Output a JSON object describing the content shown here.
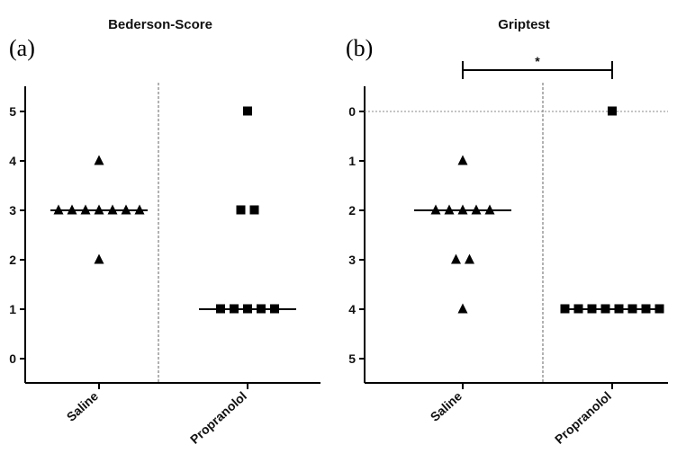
{
  "chart_data": [
    {
      "type": "scatter",
      "panel_label": "(a)",
      "title": "Bederson-Score",
      "categories": [
        "Saline",
        "Propranolol"
      ],
      "y_ticks": [
        "0",
        "1",
        "2",
        "3",
        "4",
        "5"
      ],
      "ylim": [
        0,
        5
      ],
      "y_axis_inverted": false,
      "series": [
        {
          "category": "Saline",
          "marker": "triangle",
          "values": [
            4,
            3,
            3,
            3,
            3,
            3,
            3,
            3,
            2
          ],
          "median": 3
        },
        {
          "category": "Propranolol",
          "marker": "square",
          "values": [
            5,
            3,
            3,
            1,
            1,
            1,
            1,
            1
          ],
          "median": 1
        }
      ],
      "reference_lines": [],
      "significance": null
    },
    {
      "type": "scatter",
      "panel_label": "(b)",
      "title": "Griptest",
      "categories": [
        "Saline",
        "Propranolol"
      ],
      "y_ticks": [
        "0",
        "1",
        "2",
        "3",
        "4",
        "5"
      ],
      "ylim": [
        0,
        5
      ],
      "y_axis_inverted": true,
      "series": [
        {
          "category": "Saline",
          "marker": "triangle",
          "values": [
            1,
            2,
            2,
            2,
            2,
            2,
            3,
            3,
            4
          ],
          "median": 2
        },
        {
          "category": "Propranolol",
          "marker": "square",
          "values": [
            0,
            4,
            4,
            4,
            4,
            4,
            4,
            4,
            4
          ],
          "median": 4
        }
      ],
      "reference_lines": [
        0
      ],
      "significance": {
        "between": [
          "Saline",
          "Propranolol"
        ],
        "label": "*"
      }
    }
  ]
}
